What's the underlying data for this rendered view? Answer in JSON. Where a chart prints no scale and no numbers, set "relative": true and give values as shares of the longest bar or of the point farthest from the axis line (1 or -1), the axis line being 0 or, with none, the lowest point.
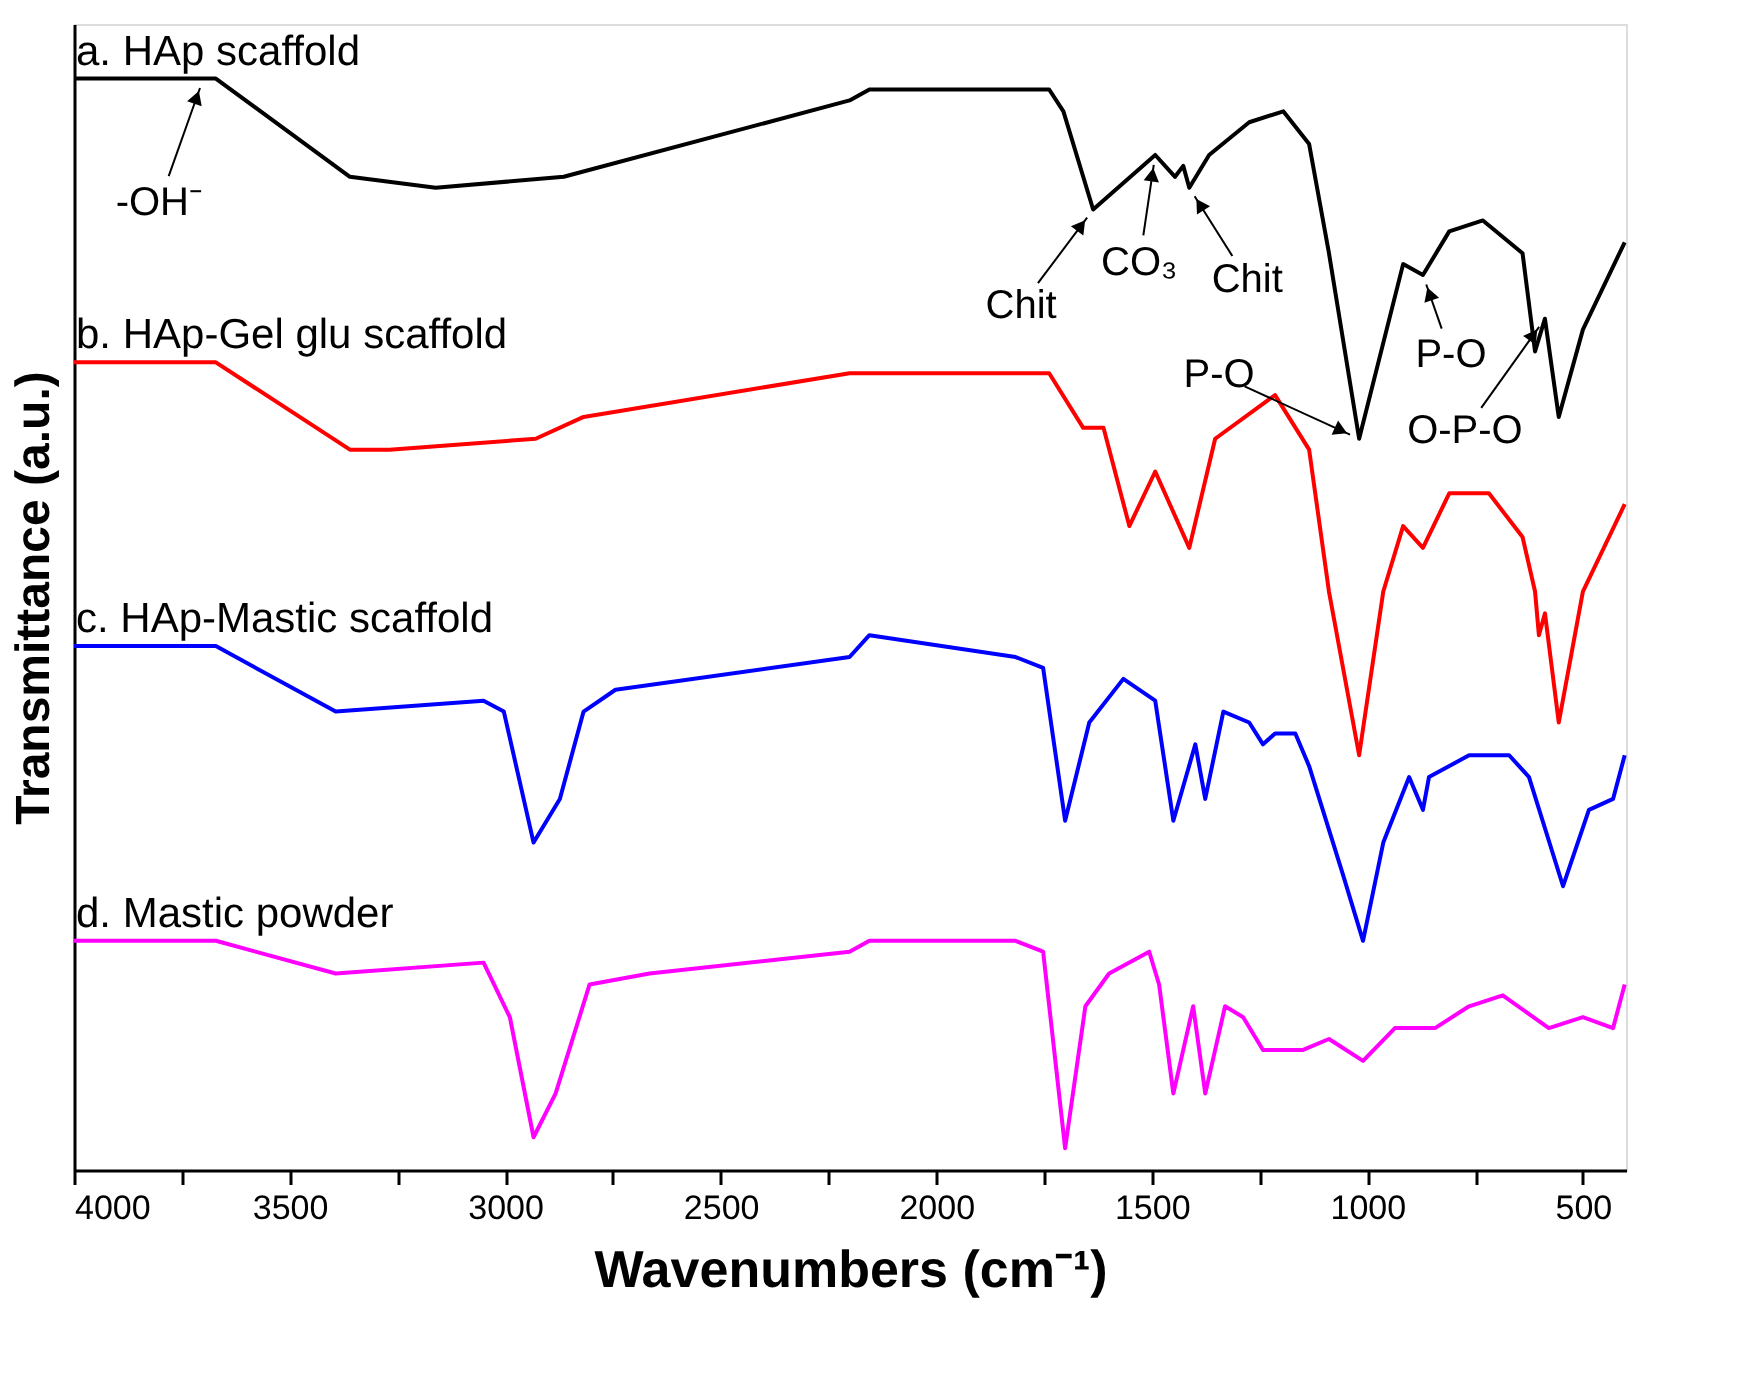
{
  "chart_data": {
    "type": "line",
    "relative": true,
    "xlabel": "Wavenumbers (cm⁻¹)",
    "ylabel": "Transmittance (a.u.)",
    "xlim": [
      4000,
      400
    ],
    "xticks": [
      4000,
      {
        "value": 3750,
        "label": null
      },
      3500,
      {
        "value": 3250,
        "label": null
      },
      3000,
      {
        "value": 2750,
        "label": null
      },
      2500,
      {
        "value": 2250,
        "label": null
      },
      2000,
      {
        "value": 1750,
        "label": null
      },
      1500,
      {
        "value": 1250,
        "label": null
      },
      1000,
      {
        "value": 750,
        "label": null
      },
      500
    ],
    "tick_labels": "x",
    "grid": false,
    "line_style": "solid",
    "marker": "none",
    "series": [
      {
        "name": "a. HAp scaffold",
        "color": "#000000",
        "x": [
          4000,
          3671,
          3360,
          3161,
          2864,
          2201,
          2155,
          1738,
          1705,
          1636,
          1492,
          1446,
          1427,
          1413,
          1367,
          1274,
          1195,
          1135,
          1089,
          1019,
          917,
          871,
          810,
          732,
          640,
          611,
          588,
          556,
          500,
          403
        ],
        "values": [
          1.0,
          1.0,
          0.91,
          0.9,
          0.91,
          0.98,
          0.99,
          0.99,
          0.97,
          0.88,
          0.93,
          0.91,
          0.92,
          0.9,
          0.93,
          0.96,
          0.97,
          0.94,
          0.84,
          0.67,
          0.83,
          0.82,
          0.86,
          0.87,
          0.84,
          0.75,
          0.78,
          0.69,
          0.77,
          0.85
        ]
      },
      {
        "name": "b. HAp-Gel glu scaffold",
        "color": "#ff0000",
        "x": [
          4000,
          3671,
          3360,
          3268,
          2929,
          2818,
          2201,
          1738,
          1659,
          1612,
          1552,
          1492,
          1413,
          1353,
          1214,
          1135,
          1089,
          1019,
          963,
          917,
          871,
          810,
          718,
          640,
          611,
          602,
          588,
          556,
          500,
          403
        ],
        "values": [
          0.74,
          0.74,
          0.66,
          0.66,
          0.67,
          0.69,
          0.73,
          0.73,
          0.68,
          0.68,
          0.59,
          0.64,
          0.57,
          0.67,
          0.71,
          0.66,
          0.53,
          0.38,
          0.53,
          0.59,
          0.57,
          0.62,
          0.62,
          0.58,
          0.53,
          0.49,
          0.51,
          0.41,
          0.53,
          0.61
        ]
      },
      {
        "name": "c. HAp-Mastic scaffold",
        "color": "#0000ff",
        "x": [
          4000,
          3671,
          3393,
          3050,
          3003,
          2934,
          2873,
          2818,
          2744,
          2201,
          2155,
          1816,
          1752,
          1701,
          1645,
          1566,
          1492,
          1450,
          1399,
          1376,
          1334,
          1274,
          1242,
          1214,
          1167,
          1135,
          1056,
          1010,
          963,
          903,
          871,
          857,
          764,
          671,
          625,
          546,
          486,
          430,
          403
        ],
        "values": [
          0.48,
          0.48,
          0.42,
          0.43,
          0.42,
          0.3,
          0.34,
          0.42,
          0.44,
          0.47,
          0.49,
          0.47,
          0.46,
          0.32,
          0.41,
          0.45,
          0.43,
          0.32,
          0.39,
          0.34,
          0.42,
          0.41,
          0.39,
          0.4,
          0.4,
          0.37,
          0.27,
          0.21,
          0.3,
          0.36,
          0.33,
          0.36,
          0.38,
          0.38,
          0.36,
          0.26,
          0.33,
          0.34,
          0.38
        ]
      },
      {
        "name": "d. Mastic powder",
        "color": "#ff00ff",
        "x": [
          4000,
          3671,
          3393,
          3050,
          2989,
          2934,
          2883,
          2804,
          2665,
          2201,
          2155,
          1816,
          1752,
          1701,
          1654,
          1599,
          1506,
          1483,
          1450,
          1404,
          1376,
          1330,
          1288,
          1242,
          1149,
          1089,
          1010,
          936,
          843,
          764,
          686,
          579,
          500,
          430,
          403
        ],
        "values": [
          0.21,
          0.21,
          0.18,
          0.19,
          0.14,
          0.03,
          0.07,
          0.17,
          0.18,
          0.2,
          0.21,
          0.21,
          0.2,
          0.02,
          0.15,
          0.18,
          0.2,
          0.17,
          0.07,
          0.15,
          0.07,
          0.15,
          0.14,
          0.11,
          0.11,
          0.12,
          0.1,
          0.13,
          0.13,
          0.15,
          0.16,
          0.13,
          0.14,
          0.13,
          0.17
        ]
      }
    ],
    "annotations": [
      {
        "text": "-OH⁻",
        "x": 3700,
        "y": 1.0
      },
      {
        "text": "Chit",
        "x": 1636,
        "y": 0.88
      },
      {
        "text": "CO₃",
        "x": 1492,
        "y": 0.93
      },
      {
        "text": "Chit",
        "x": 1413,
        "y": 0.9
      },
      {
        "text": "P-O",
        "x": 1019,
        "y": 0.67
      },
      {
        "text": "P-O",
        "x": 871,
        "y": 0.82
      },
      {
        "text": "O-P-O",
        "x": 588,
        "y": 0.78
      }
    ]
  }
}
